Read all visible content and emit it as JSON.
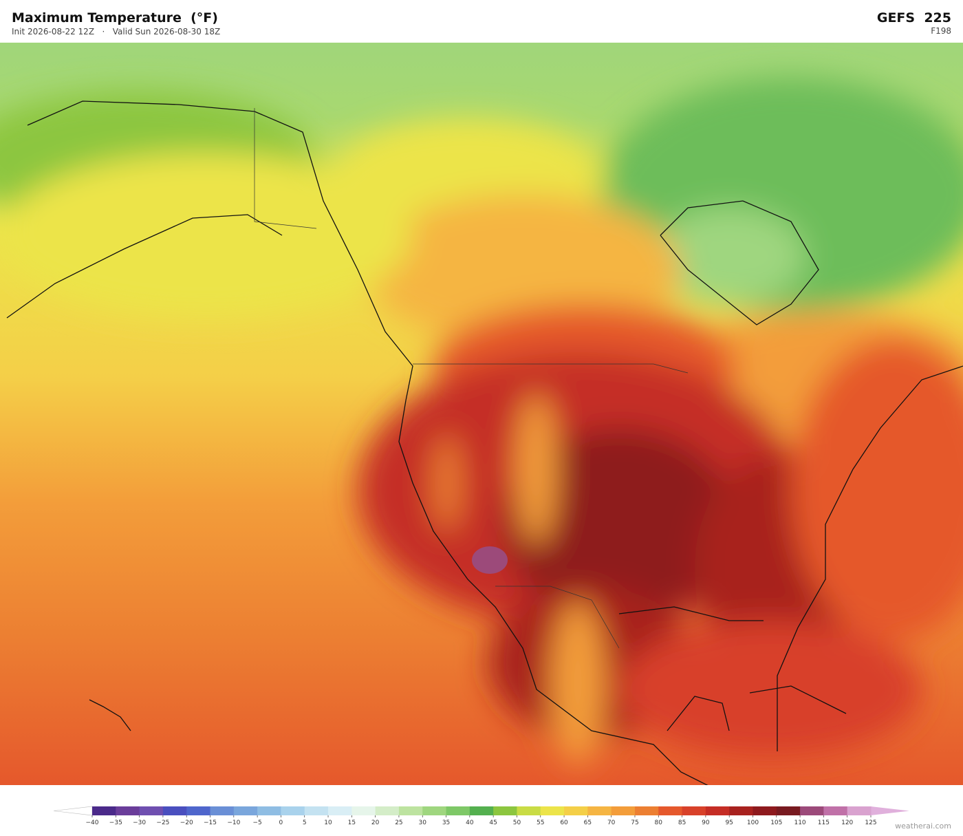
{
  "header": {
    "title": "Maximum Temperature  (°F)",
    "init": "Init 2026-08-22 12Z",
    "separator": "·",
    "valid": "Valid Sun 2026-08-30 18Z",
    "model": "GEFS  225",
    "forecast_hour": "F198"
  },
  "colorbar": {
    "ticks": [
      {
        "value": -40,
        "label": "−40"
      },
      {
        "value": -35,
        "label": "−35"
      },
      {
        "value": -30,
        "label": "−30"
      },
      {
        "value": -25,
        "label": "−25"
      },
      {
        "value": -20,
        "label": "−20"
      },
      {
        "value": -15,
        "label": "−15"
      },
      {
        "value": -10,
        "label": "−10"
      },
      {
        "value": -5,
        "label": "−5"
      },
      0,
      5,
      10,
      15,
      20,
      25,
      30,
      35,
      40,
      45,
      50,
      55,
      60,
      65,
      70,
      75,
      80,
      85,
      90,
      95,
      100,
      105,
      110,
      115,
      120,
      125
    ],
    "colors": [
      "#4b2a8a",
      "#6a3d9a",
      "#6f4fb0",
      "#4a4fbf",
      "#4f66cc",
      "#6a8fd6",
      "#7aa6dc",
      "#8fbde3",
      "#a9d2ec",
      "#c4e2f1",
      "#d9eef5",
      "#e6f5ea",
      "#d4edc8",
      "#bde3a0",
      "#9fd67f",
      "#7ec867",
      "#54b04f",
      "#8cc63f",
      "#c9dc45",
      "#ece44a",
      "#f4cf48",
      "#f5b543",
      "#f39d3a",
      "#ec7f32",
      "#e5582c",
      "#d8412a",
      "#c52d25",
      "#a8221f",
      "#8e1a1e",
      "#781a20",
      "#9c4a7a",
      "#c071a8",
      "#d9a2cf"
    ],
    "under_color": "#ffffff",
    "over_color": "#e0b0dc"
  },
  "footer": {
    "watermark": "weatherai.com"
  }
}
